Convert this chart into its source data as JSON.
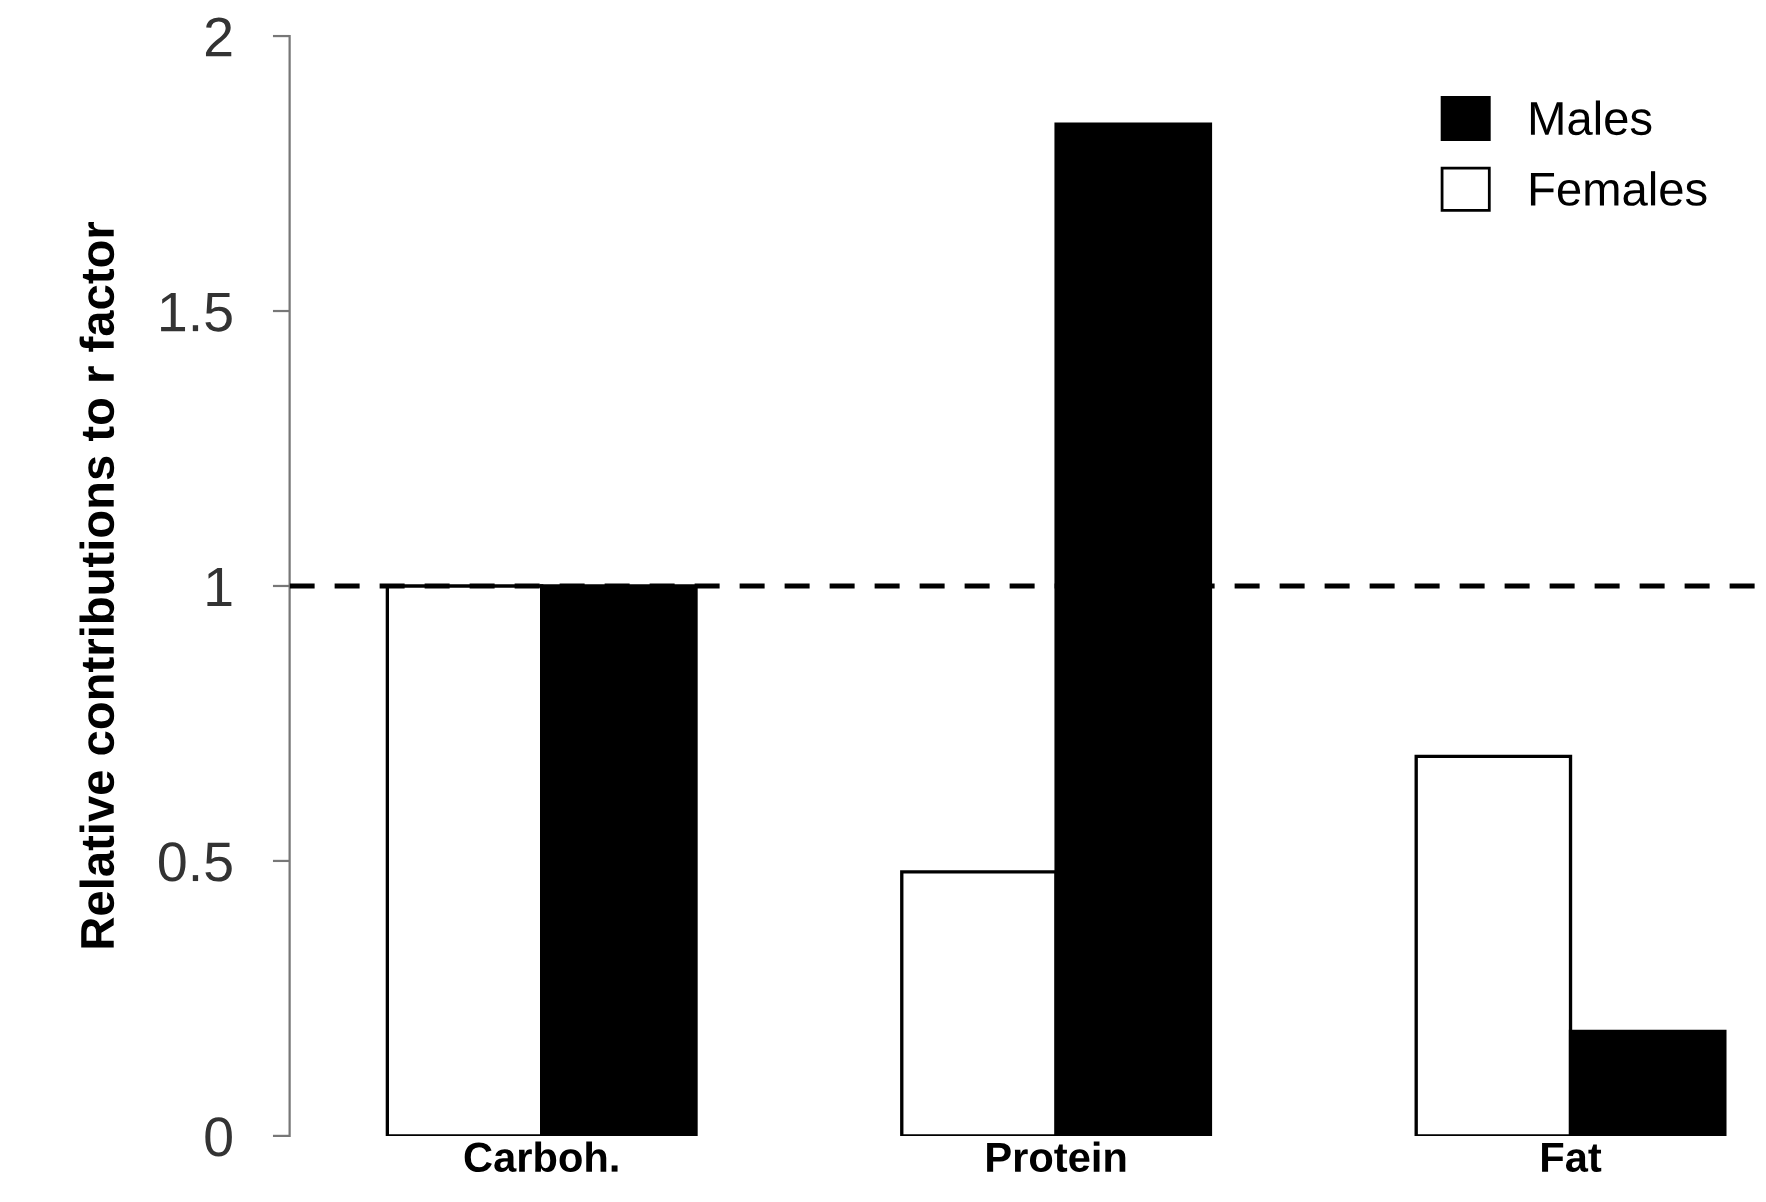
{
  "chart_data": {
    "type": "bar",
    "ylabel": "Relative contributions to r factor",
    "categories": [
      "Carboh.",
      "Protein",
      "Fat"
    ],
    "series": [
      {
        "name": "Females",
        "color": "#ffffff",
        "values": [
          1,
          0.48,
          0.69
        ]
      },
      {
        "name": "Males",
        "color": "#000000",
        "values": [
          1,
          1.84,
          0.19
        ]
      }
    ],
    "ylim": [
      0,
      2
    ],
    "yticks": [
      0,
      0.5,
      1,
      1.5,
      2
    ],
    "grid": false,
    "legend": "top right",
    "ref_lines": [
      {
        "axis": "y",
        "value": 1,
        "line_style": "dashed",
        "color": "#000000"
      }
    ]
  }
}
